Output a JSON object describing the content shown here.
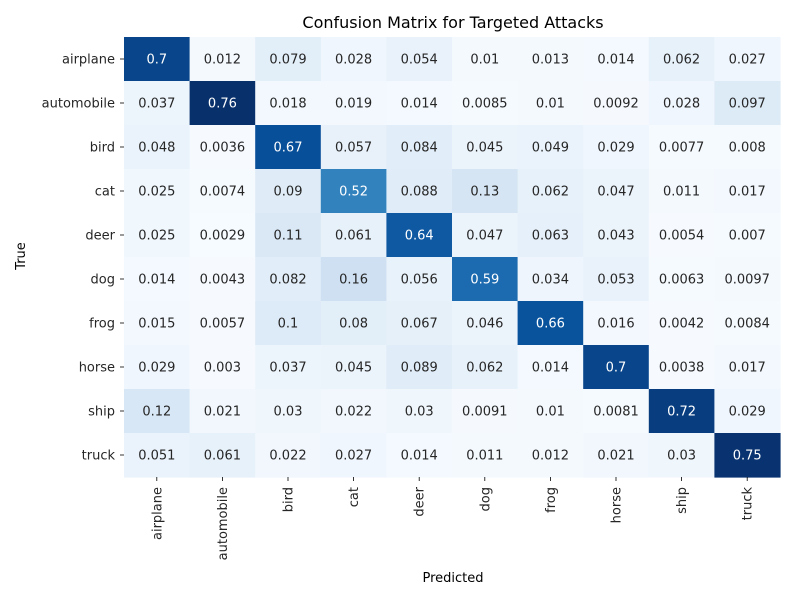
{
  "chart_data": {
    "type": "heatmap",
    "title": "Confusion Matrix for Targeted Attacks",
    "xlabel": "Predicted",
    "ylabel": "True",
    "x_categories": [
      "airplane",
      "automobile",
      "bird",
      "cat",
      "deer",
      "dog",
      "frog",
      "horse",
      "ship",
      "truck"
    ],
    "y_categories": [
      "airplane",
      "automobile",
      "bird",
      "cat",
      "deer",
      "dog",
      "frog",
      "horse",
      "ship",
      "truck"
    ],
    "values": [
      [
        "0.7",
        "0.012",
        "0.079",
        "0.028",
        "0.054",
        "0.01",
        "0.013",
        "0.014",
        "0.062",
        "0.027"
      ],
      [
        "0.037",
        "0.76",
        "0.018",
        "0.019",
        "0.014",
        "0.0085",
        "0.01",
        "0.0092",
        "0.028",
        "0.097"
      ],
      [
        "0.048",
        "0.0036",
        "0.67",
        "0.057",
        "0.084",
        "0.045",
        "0.049",
        "0.029",
        "0.0077",
        "0.008"
      ],
      [
        "0.025",
        "0.0074",
        "0.09",
        "0.52",
        "0.088",
        "0.13",
        "0.062",
        "0.047",
        "0.011",
        "0.017"
      ],
      [
        "0.025",
        "0.0029",
        "0.11",
        "0.061",
        "0.64",
        "0.047",
        "0.063",
        "0.043",
        "0.0054",
        "0.007"
      ],
      [
        "0.014",
        "0.0043",
        "0.082",
        "0.16",
        "0.056",
        "0.59",
        "0.034",
        "0.053",
        "0.0063",
        "0.0097"
      ],
      [
        "0.015",
        "0.0057",
        "0.1",
        "0.08",
        "0.067",
        "0.046",
        "0.66",
        "0.016",
        "0.0042",
        "0.0084"
      ],
      [
        "0.029",
        "0.003",
        "0.037",
        "0.045",
        "0.089",
        "0.062",
        "0.014",
        "0.7",
        "0.0038",
        "0.017"
      ],
      [
        "0.12",
        "0.021",
        "0.03",
        "0.022",
        "0.03",
        "0.0091",
        "0.01",
        "0.0081",
        "0.72",
        "0.029"
      ],
      [
        "0.051",
        "0.061",
        "0.022",
        "0.027",
        "0.014",
        "0.011",
        "0.012",
        "0.021",
        "0.03",
        "0.75"
      ]
    ],
    "colormap": "Blues",
    "color_range": [
      0,
      0.76
    ],
    "annotations": true,
    "grid": false,
    "colorbar": false
  }
}
